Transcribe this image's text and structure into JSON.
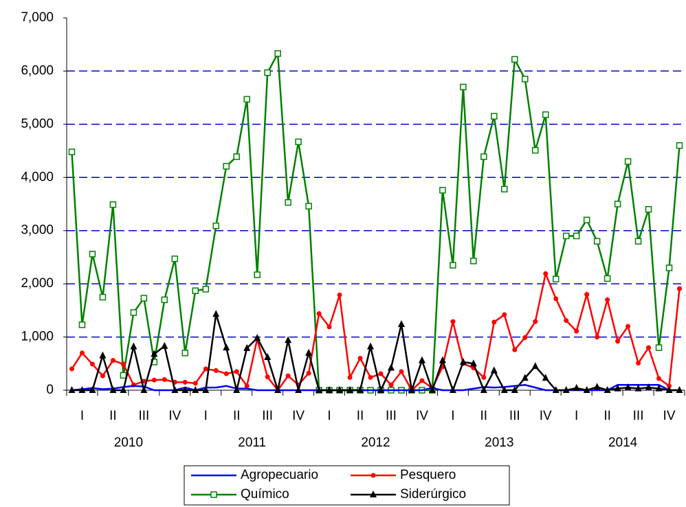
{
  "chart_data": {
    "type": "line",
    "quarter_labels": [
      "I",
      "II",
      "III",
      "IV",
      "I",
      "II",
      "III",
      "IV",
      "I",
      "II",
      "III",
      "IV",
      "I",
      "II",
      "III",
      "IV",
      "I",
      "II",
      "III",
      "IV"
    ],
    "year_labels": [
      "2010",
      "2011",
      "2012",
      "2013",
      "2014"
    ],
    "ylim": [
      0,
      7000
    ],
    "yticks": [
      {
        "value": 0,
        "label": "0"
      },
      {
        "value": 1000,
        "label": "1,000"
      },
      {
        "value": 2000,
        "label": "2,000"
      },
      {
        "value": 3000,
        "label": "3,000"
      },
      {
        "value": 4000,
        "label": "4,000"
      },
      {
        "value": 5000,
        "label": "5,000"
      },
      {
        "value": 6000,
        "label": "6,000"
      },
      {
        "value": 7000,
        "label": "7,000"
      }
    ],
    "grid": true,
    "legend": "bottom",
    "series": [
      {
        "name": "Agropecuario",
        "color": "#0000ff",
        "marker": "none",
        "values": [
          0,
          20,
          40,
          20,
          30,
          60,
          80,
          70,
          0,
          0,
          0,
          50,
          0,
          50,
          50,
          80,
          30,
          30,
          0,
          0,
          0,
          0,
          0,
          0,
          0,
          0,
          0,
          0,
          0,
          0,
          0,
          0,
          0,
          0,
          0,
          40,
          0,
          0,
          0,
          30,
          60,
          50,
          60,
          80,
          100,
          50,
          0,
          0,
          0,
          0,
          0,
          0,
          0,
          100,
          100,
          100,
          100,
          100,
          0,
          0
        ]
      },
      {
        "name": "Pesquero",
        "color": "#ff0000",
        "marker": "circle",
        "values": [
          400,
          700,
          490,
          270,
          560,
          490,
          100,
          170,
          190,
          200,
          150,
          150,
          130,
          400,
          370,
          310,
          350,
          80,
          960,
          250,
          0,
          270,
          100,
          320,
          1440,
          1190,
          1790,
          240,
          600,
          240,
          310,
          100,
          350,
          0,
          180,
          40,
          440,
          1290,
          500,
          420,
          240,
          1280,
          1420,
          760,
          990,
          1290,
          2190,
          1720,
          1310,
          1110,
          1800,
          1000,
          1700,
          920,
          1200,
          510,
          800,
          220,
          80,
          1910
        ]
      },
      {
        "name": "Químico",
        "color": "#008000",
        "marker": "square",
        "values": [
          4480,
          1230,
          2560,
          1750,
          3490,
          280,
          1460,
          1730,
          530,
          1700,
          2470,
          700,
          1870,
          1900,
          3090,
          4210,
          4390,
          5470,
          2170,
          5970,
          6330,
          3530,
          4670,
          3460,
          0,
          0,
          0,
          0,
          0,
          0,
          0,
          0,
          0,
          0,
          0,
          0,
          3760,
          2350,
          5700,
          2430,
          4390,
          5150,
          3780,
          6220,
          5850,
          4510,
          5180,
          2090,
          2900,
          2900,
          3200,
          2800,
          2100,
          3500,
          4300,
          2800,
          3400,
          800,
          2300,
          4600
        ]
      },
      {
        "name": "Siderúrgico",
        "color": "#000000",
        "marker": "triangle",
        "values": [
          0,
          0,
          0,
          650,
          0,
          0,
          820,
          0,
          680,
          830,
          0,
          0,
          0,
          0,
          1430,
          800,
          0,
          790,
          980,
          620,
          0,
          940,
          0,
          700,
          0,
          0,
          0,
          0,
          0,
          820,
          0,
          420,
          1240,
          0,
          560,
          0,
          560,
          0,
          530,
          500,
          0,
          370,
          0,
          0,
          230,
          450,
          230,
          0,
          0,
          40,
          0,
          60,
          0,
          30,
          50,
          30,
          50,
          30,
          0,
          0
        ]
      }
    ]
  }
}
